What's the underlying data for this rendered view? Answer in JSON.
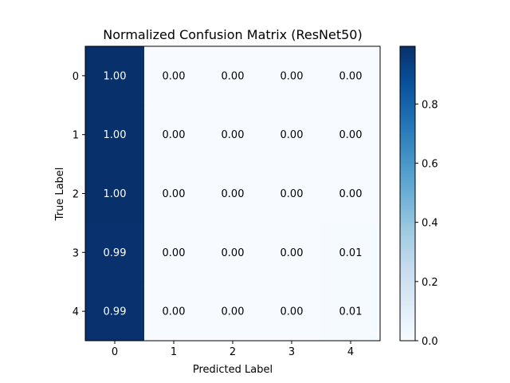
{
  "chart_data": {
    "type": "heatmap",
    "title": "Normalized Confusion Matrix (ResNet50)",
    "xlabel": "Predicted Label",
    "ylabel": "True Label",
    "x_categories": [
      "0",
      "1",
      "2",
      "3",
      "4"
    ],
    "y_categories": [
      "0",
      "1",
      "2",
      "3",
      "4"
    ],
    "values": [
      [
        1.0,
        0.0,
        0.0,
        0.0,
        0.0
      ],
      [
        1.0,
        0.0,
        0.0,
        0.0,
        0.0
      ],
      [
        1.0,
        0.0,
        0.0,
        0.0,
        0.0
      ],
      [
        0.99,
        0.0,
        0.0,
        0.0,
        0.01
      ],
      [
        0.99,
        0.0,
        0.0,
        0.0,
        0.01
      ]
    ],
    "value_labels": [
      [
        "1.00",
        "0.00",
        "0.00",
        "0.00",
        "0.00"
      ],
      [
        "1.00",
        "0.00",
        "0.00",
        "0.00",
        "0.00"
      ],
      [
        "1.00",
        "0.00",
        "0.00",
        "0.00",
        "0.00"
      ],
      [
        "0.99",
        "0.00",
        "0.00",
        "0.00",
        "0.01"
      ],
      [
        "0.99",
        "0.00",
        "0.00",
        "0.00",
        "0.01"
      ]
    ],
    "colormap": "Blues",
    "color_range": [
      0.0,
      0.995
    ],
    "colorbar": {
      "ticks": [
        0.0,
        0.2,
        0.4,
        0.6,
        0.8
      ],
      "tick_labels": [
        "0.0",
        "0.2",
        "0.4",
        "0.6",
        "0.8"
      ]
    },
    "grid": false
  }
}
